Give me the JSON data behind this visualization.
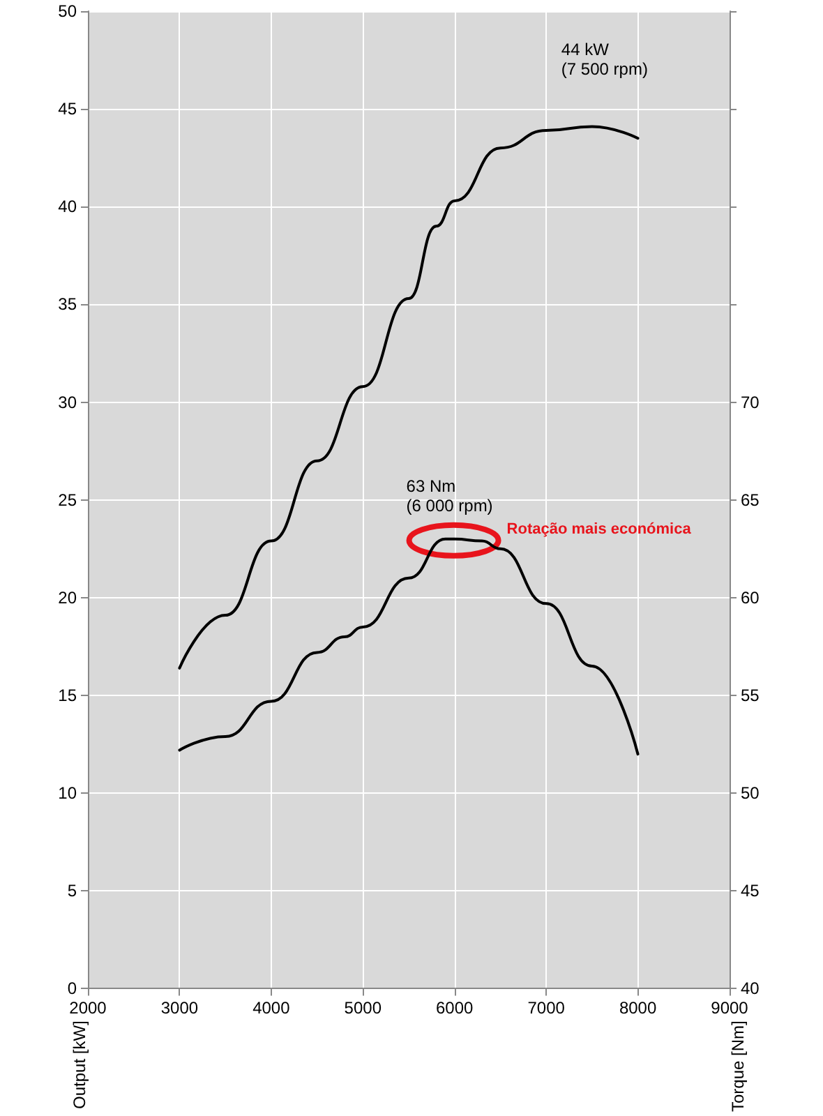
{
  "chart_data": {
    "type": "line",
    "ylabel": "Output [kW]",
    "y2label": "Torque [Nm]",
    "xlim": [
      2000,
      9000
    ],
    "xticks": [
      2000,
      3000,
      4000,
      5000,
      6000,
      7000,
      8000,
      9000
    ],
    "ylim": [
      0,
      50
    ],
    "yticks": [
      0,
      5,
      10,
      15,
      20,
      25,
      30,
      35,
      40,
      45,
      50
    ],
    "y2lim": [
      40,
      90
    ],
    "y2ticks": [
      40,
      45,
      50,
      55,
      60,
      65,
      70,
      {
        "value": 75,
        "label": null
      },
      {
        "value": 80,
        "label": null
      },
      {
        "value": 85,
        "label": null
      },
      {
        "value": 90,
        "label": null
      }
    ],
    "grid": true,
    "marker": "none",
    "line_style": "solid",
    "series": [
      {
        "color": "#000000",
        "x": [
          3000,
          3500,
          4000,
          4500,
          5000,
          5500,
          5800,
          6000,
          6500,
          7000,
          7500,
          8000
        ],
        "values": [
          16.4,
          19.1,
          22.9,
          27.0,
          30.8,
          35.3,
          39.0,
          40.3,
          43.0,
          43.9,
          44.1,
          43.5
        ]
      },
      {
        "color": "#000000",
        "axis": "y2",
        "x": [
          3000,
          3500,
          4000,
          4500,
          4800,
          5000,
          5500,
          5900,
          6000,
          6300,
          6500,
          7000,
          7500,
          8000
        ],
        "values": [
          52.2,
          52.9,
          54.7,
          57.2,
          58.0,
          58.5,
          61.0,
          63.0,
          63.0,
          62.9,
          62.5,
          59.7,
          56.5,
          52.0
        ]
      }
    ],
    "annotations": [
      {
        "text": "44 kW\n(7 500 rpm)",
        "x": 7500,
        "y": 44.1
      },
      "63 Nm\n(6 000 rpm)",
      "Rotação mais económica"
    ]
  }
}
